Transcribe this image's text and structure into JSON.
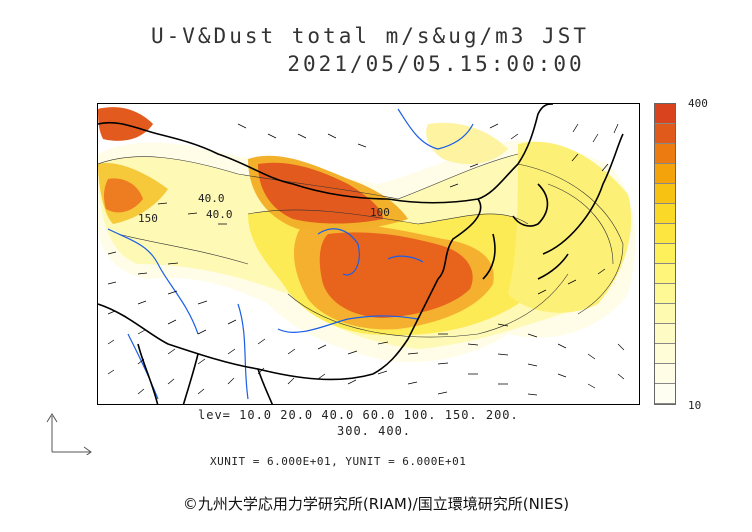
{
  "header": {
    "title_line1": "U-V&Dust total m/s&ug/m3 JST",
    "title_line2": "2021/05/05.15:00:00"
  },
  "legend": {
    "max_label": "400",
    "min_label": "10",
    "colors": [
      "#d9441e",
      "#e05a1c",
      "#ec7b12",
      "#f5a30a",
      "#f8c213",
      "#fbd928",
      "#fde640",
      "#fef05b",
      "#fef57a",
      "#fef895",
      "#fefab0",
      "#fefbc5",
      "#fffcd8",
      "#fffde6",
      "#fffef2"
    ]
  },
  "levels": {
    "line1": "lev= 10.0 20.0 40.0 60.0 100. 150. 200.",
    "line2": "300. 400."
  },
  "units": {
    "text": "XUNIT = 6.000E+01, YUNIT = 6.000E+01"
  },
  "credit": {
    "text": "©九州大学応用力学研究所(RIAM)/国立環境研究所(NIES)"
  },
  "map_labels": [
    "40.0",
    "40.0",
    "150",
    "100"
  ],
  "colors": {
    "coast": "#000000",
    "river": "#1a5ee8",
    "vector": "#000000"
  }
}
